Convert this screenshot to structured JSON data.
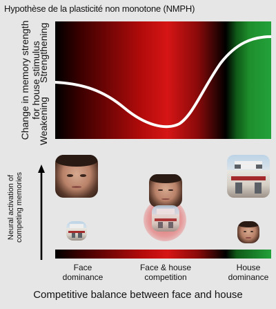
{
  "title": "Hypothèse de la plasticité non monotone (NMPH)",
  "y_axis": {
    "label_line1": "Change in memory strength",
    "label_line2": "for house stimulus",
    "top_label": "Strengthening",
    "bottom_label": "Weakening"
  },
  "neural_axis": {
    "label_line1": "Neural activation of",
    "label_line2": "competing memories"
  },
  "x_categories": [
    {
      "line1": "Face",
      "line2": "dominance"
    },
    {
      "line1": "Face & house",
      "line2": "competition"
    },
    {
      "line1": "House",
      "line2": "dominance"
    }
  ],
  "x_label": "Competitive balance between face and house",
  "colors": {
    "weakening_region": "#d61515",
    "strengthening_region": "#23a13a",
    "neutral": "#000000",
    "curve": "#ffffff"
  },
  "images": {
    "face_icon": "woman-face-photo",
    "house_icon": "house-cafe-photo"
  }
}
